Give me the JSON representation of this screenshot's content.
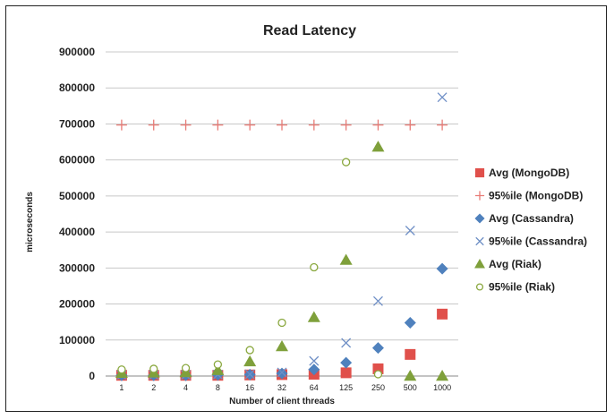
{
  "chart_data": {
    "type": "scatter",
    "title": "Read Latency",
    "xlabel": "Number of client threads",
    "ylabel": "microseconds",
    "categories": [
      "1",
      "2",
      "4",
      "8",
      "16",
      "32",
      "64",
      "125",
      "250",
      "500",
      "1000"
    ],
    "yticks": [
      "0",
      "100000",
      "200000",
      "300000",
      "400000",
      "500000",
      "600000",
      "700000",
      "800000",
      "900000"
    ],
    "ylim": [
      0,
      900000
    ],
    "grid": true,
    "legend_position": "right",
    "series": [
      {
        "name": "Avg (MongoDB)",
        "marker": "square",
        "color": "#e0504b",
        "values": [
          2000,
          2000,
          2000,
          2000,
          3000,
          4000,
          5000,
          9000,
          20000,
          60000,
          172000
        ]
      },
      {
        "name": "95%ile (MongoDB)",
        "marker": "plus",
        "color": "#e87b76",
        "values": [
          697000,
          697000,
          697000,
          697000,
          697000,
          697000,
          697000,
          697000,
          697000,
          697000,
          697000
        ]
      },
      {
        "name": "Avg (Cassandra)",
        "marker": "diamond",
        "color": "#4f81bd",
        "values": [
          2000,
          2000,
          2000,
          3000,
          4000,
          7000,
          18000,
          37000,
          78000,
          148000,
          298000
        ]
      },
      {
        "name": "95%ile (Cassandra)",
        "marker": "x",
        "color": "#6f8fc6",
        "values": [
          3000,
          3000,
          3000,
          4000,
          5000,
          10000,
          42000,
          92000,
          208000,
          404000,
          774000
        ]
      },
      {
        "name": "Avg (Riak)",
        "marker": "triangle",
        "color": "#7fa03b",
        "values": [
          8000,
          9000,
          10000,
          16000,
          40000,
          82000,
          163000,
          322000,
          636000,
          0,
          0
        ]
      },
      {
        "name": "95%ile (Riak)",
        "marker": "circle",
        "color": "#8aa83f",
        "values": [
          18000,
          20000,
          22000,
          32000,
          72000,
          148000,
          302000,
          594000,
          5000,
          null,
          null
        ]
      }
    ]
  }
}
